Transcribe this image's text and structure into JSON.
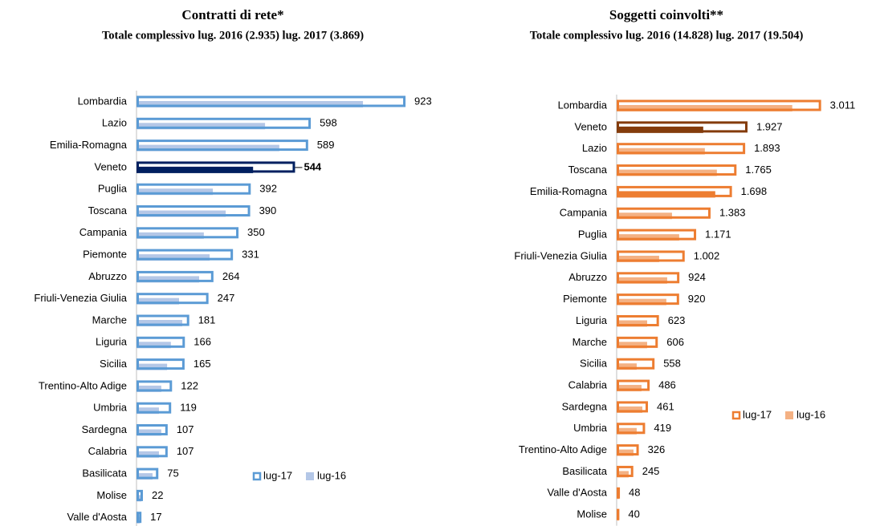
{
  "chart_data": [
    {
      "type": "bar",
      "orientation": "horizontal",
      "title": "Contratti di rete*",
      "subtitle": "Totale complessivo lug. 2016 (2.935) lug. 2017 (3.869)",
      "categories": [
        "Lombardia",
        "Lazio",
        "Emilia-Romagna",
        "Veneto",
        "Puglia",
        "Toscana",
        "Campania",
        "Piemonte",
        "Abruzzo",
        "Friuli-Venezia Giulia",
        "Marche",
        "Liguria",
        "Sicilia",
        "Trentino-Alto Adige",
        "Umbria",
        "Sardegna",
        "Calabria",
        "Basilicata",
        "Molise",
        "Valle d'Aosta"
      ],
      "series": [
        {
          "name": "lug-17",
          "color": "#5b9bd5",
          "values": [
            923,
            598,
            589,
            544,
            392,
            390,
            350,
            331,
            264,
            247,
            181,
            166,
            165,
            122,
            119,
            107,
            107,
            75,
            22,
            17
          ]
        },
        {
          "name": "lug-16",
          "color": "#b4c7e7",
          "values": [
            777,
            441,
            490,
            400,
            262,
            306,
            231,
            251,
            215,
            146,
            157,
            118,
            105,
            85,
            77,
            85,
            77,
            55,
            17,
            11
          ]
        }
      ],
      "highlights": [
        {
          "index": 3,
          "color": "#002060",
          "bold": true
        }
      ],
      "xlim": [
        0,
        1000
      ],
      "legend": "lower right"
    },
    {
      "type": "bar",
      "orientation": "horizontal",
      "title": "Soggetti coinvolti**",
      "subtitle": "Totale complessivo lug. 2016 (14.828) lug. 2017 (19.504)",
      "categories": [
        "Lombardia",
        "Veneto",
        "Lazio",
        "Toscana",
        "Emilia-Romagna",
        "Campania",
        "Puglia",
        "Friuli-Venezia Giulia",
        "Abruzzo",
        "Piemonte",
        "Liguria",
        "Marche",
        "Sicilia",
        "Calabria",
        "Sardegna",
        "Umbria",
        "Trentino-Alto Adige",
        "Basilicata",
        "Valle d'Aosta",
        "Molise"
      ],
      "series": [
        {
          "name": "lug-17",
          "color": "#ed7d31",
          "values": [
            3011,
            1927,
            1893,
            1765,
            1698,
            1383,
            1171,
            1002,
            924,
            920,
            623,
            606,
            558,
            486,
            461,
            419,
            326,
            245,
            48,
            40
          ],
          "value_labels": [
            "3.011",
            "1.927",
            "1.893",
            "1.765",
            "1.698",
            "1.383",
            "1.171",
            "1.002",
            "924",
            "920",
            "623",
            "606",
            "558",
            "486",
            "461",
            "419",
            "326",
            "245",
            "48",
            "40"
          ]
        },
        {
          "name": "lug-16",
          "color": "#f4b183",
          "values": [
            2586,
            1275,
            1299,
            1476,
            1452,
            815,
            921,
            626,
            744,
            732,
            449,
            449,
            295,
            366,
            378,
            295,
            248,
            177,
            35,
            35
          ]
        }
      ],
      "highlights": [
        {
          "index": 1,
          "color": "#843c0c"
        },
        {
          "index": 4,
          "color": "#ed7d31"
        }
      ],
      "xlim": [
        0,
        3500
      ],
      "legend": "right"
    }
  ]
}
